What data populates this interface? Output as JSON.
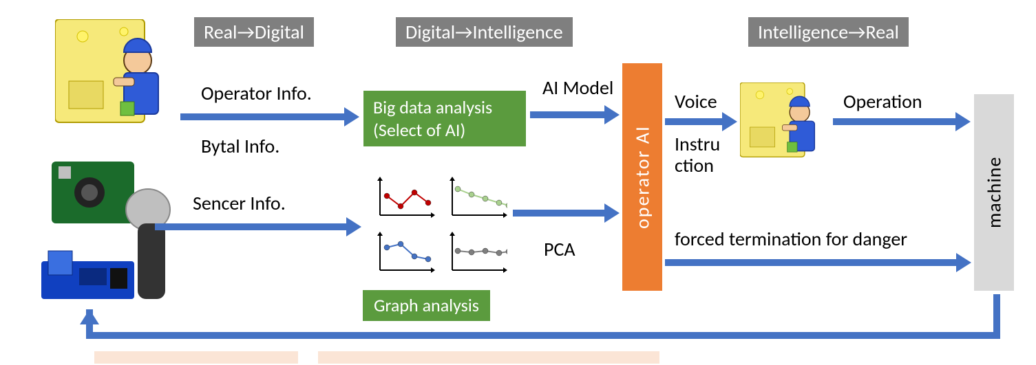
{
  "headers": {
    "h1": "Real→Digital",
    "h2": "Digital→Intelligence",
    "h3": "Intelligence→Real"
  },
  "labels": {
    "operator_info": "Operator Info.",
    "bytal_info": "Bytal Info.",
    "sencer_info": "Sencer Info.",
    "ai_model": "AI Model",
    "pca": "PCA",
    "voice": "Voice",
    "instruction_l1": "Instru",
    "instruction_l2": "ction",
    "operation": "Operation",
    "forced": "forced termination for danger"
  },
  "boxes": {
    "bigdata_l1": "Big data analysis",
    "bigdata_l2": "(Select of AI)",
    "graph_analysis": "Graph analysis",
    "operator_ai": "operator   AI",
    "machine": "machine"
  },
  "colors": {
    "arrow": "#4472c4",
    "header_bg": "#7f7f7f",
    "green": "#5b9b3e",
    "orange": "#ed7d31",
    "grey": "#d9d9d9",
    "peach": "#fbe5d6",
    "chart_red": "#c00000",
    "chart_green": "#a9d18e",
    "chart_blue": "#4472c4",
    "chart_grey": "#7f7f7f"
  },
  "charts": {
    "c1": {
      "pts": [
        [
          10,
          30
        ],
        [
          30,
          45
        ],
        [
          50,
          25
        ],
        [
          70,
          40
        ]
      ],
      "color": "#c00000"
    },
    "c2": {
      "pts": [
        [
          8,
          20
        ],
        [
          28,
          28
        ],
        [
          48,
          34
        ],
        [
          68,
          40
        ],
        [
          82,
          44
        ]
      ],
      "color": "#a9d18e"
    },
    "c3": {
      "pts": [
        [
          10,
          25
        ],
        [
          30,
          20
        ],
        [
          50,
          38
        ],
        [
          70,
          42
        ]
      ],
      "color": "#4472c4"
    },
    "c4": {
      "pts": [
        [
          8,
          30
        ],
        [
          28,
          32
        ],
        [
          48,
          30
        ],
        [
          68,
          33
        ],
        [
          82,
          31
        ]
      ],
      "color": "#7f7f7f"
    }
  }
}
